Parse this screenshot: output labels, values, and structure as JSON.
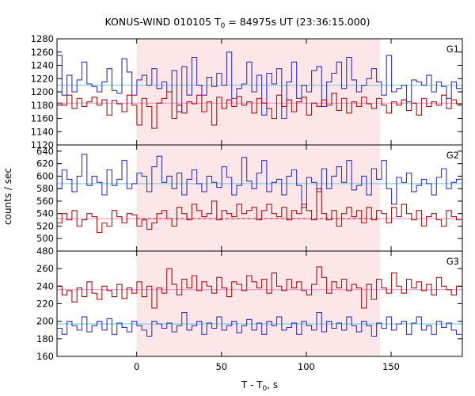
{
  "chart_data": {
    "type": "line",
    "title": "KONUS-WIND 010105 T",
    "title_sub": "0",
    "title_rest": " = 84975s UT (23:36:15.000)",
    "xlabel_main": "T - T",
    "xlabel_sub": "0",
    "xlabel_rest": ", s",
    "ylabel": "counts / sec",
    "xlim": [
      -47,
      192
    ],
    "xticks": [
      0,
      50,
      100,
      150
    ],
    "shaded_interval": [
      0,
      143.5
    ],
    "step": 2.944,
    "colors": {
      "blue": "#3333bb",
      "red": "#aa1111",
      "blue_bg": "#66ccdd",
      "red_bg": "#ee88cc",
      "shade": "#fde6e8"
    },
    "panels": [
      {
        "label": "G1",
        "ylim": [
          1120,
          1280
        ],
        "yticks": [
          1120,
          1140,
          1160,
          1180,
          1200,
          1220,
          1240,
          1260,
          1280
        ],
        "series": [
          {
            "color_key": "blue",
            "background": 1210,
            "values": [
              1255,
              1195,
              1225,
              1200,
              1218,
              1245,
              1212,
              1208,
              1200,
              1215,
              1235,
              1202,
              1198,
              1250,
              1230,
              1195,
              1218,
              1225,
              1210,
              1235,
              1205,
              1215,
              1200,
              1232,
              1170,
              1238,
              1195,
              1252,
              1210,
              1195,
              1222,
              1208,
              1228,
              1210,
              1260,
              1190,
              1205,
              1212,
              1245,
              1200,
              1225,
              1165,
              1228,
              1212,
              1235,
              1160,
              1215,
              1245,
              1190,
              1210,
              1200,
              1232,
              1238,
              1178,
              1215,
              1228,
              1245,
              1205,
              1252,
              1218,
              1200,
              1210,
              1220,
              1235,
              1215,
              1195,
              1255,
              1200,
              1205,
              1210,
              1185,
              1218,
              1215,
              1210,
              1225,
              1200,
              1215,
              1208,
              1190,
              1215,
              1205
            ]
          },
          {
            "color_key": "red",
            "background": 1183,
            "values": [
              1183,
              1180,
              1195,
              1175,
              1190,
              1178,
              1185,
              1192,
              1180,
              1188,
              1165,
              1187,
              1182,
              1170,
              1195,
              1180,
              1150,
              1190,
              1178,
              1145,
              1183,
              1190,
              1200,
              1160,
              1180,
              1168,
              1185,
              1182,
              1195,
              1170,
              1185,
              1150,
              1192,
              1175,
              1188,
              1178,
              1193,
              1180,
              1185,
              1168,
              1190,
              1183,
              1175,
              1160,
              1195,
              1178,
              1188,
              1170,
              1185,
              1192,
              1165,
              1183,
              1178,
              1188,
              1180,
              1198,
              1172,
              1190,
              1168,
              1185,
              1178,
              1192,
              1182,
              1175,
              1190,
              1180,
              1168,
              1185,
              1180,
              1188,
              1172,
              1183,
              1165,
              1190,
              1178,
              1185,
              1180,
              1195,
              1175,
              1188,
              1182
            ]
          }
        ]
      },
      {
        "label": "G2",
        "ylim": [
          480,
          650
        ],
        "yticks": [
          480,
          500,
          520,
          540,
          560,
          580,
          600,
          620,
          640
        ],
        "series": [
          {
            "color_key": "blue",
            "background": 588,
            "values": [
              580,
              610,
              595,
              575,
              600,
              635,
              585,
              600,
              590,
              570,
              610,
              585,
              595,
              625,
              580,
              588,
              605,
              600,
              575,
              615,
              632,
              590,
              600,
              580,
              605,
              570,
              595,
              610,
              588,
              575,
              600,
              590,
              582,
              615,
              598,
              570,
              585,
              630,
              592,
              580,
              605,
              625,
              575,
              590,
              595,
              570,
              600,
              610,
              585,
              550,
              598,
              590,
              575,
              612,
              580,
              600,
              615,
              590,
              625,
              578,
              585,
              600,
              570,
              612,
              595,
              625,
              580,
              555,
              598,
              590,
              605,
              575,
              585,
              595,
              588,
              570,
              598,
              612,
              580,
              590,
              595
            ]
          },
          {
            "color_key": "red",
            "background": 532,
            "values": [
              525,
              540,
              530,
              545,
              520,
              530,
              540,
              535,
              510,
              525,
              520,
              545,
              535,
              525,
              540,
              538,
              520,
              530,
              515,
              525,
              540,
              545,
              532,
              520,
              550,
              540,
              530,
              555,
              545,
              535,
              540,
              560,
              530,
              545,
              540,
              535,
              555,
              540,
              545,
              550,
              530,
              545,
              555,
              540,
              535,
              550,
              530,
              545,
              540,
              555,
              545,
              530,
              580,
              540,
              530,
              545,
              520,
              540,
              550,
              535,
              545,
              525,
              550,
              530,
              545,
              540,
              525,
              550,
              535,
              555,
              540,
              530,
              545,
              520,
              535,
              540,
              530,
              520,
              545,
              535,
              530
            ]
          }
        ]
      },
      {
        "label": "G3",
        "ylim": [
          160,
          280
        ],
        "yticks": [
          160,
          180,
          200,
          220,
          240,
          260
        ],
        "series": [
          {
            "color_key": "red",
            "background": 236,
            "values": [
              240,
              230,
              235,
              222,
              238,
              228,
              245,
              232,
              225,
              240,
              235,
              228,
              242,
              226,
              238,
              232,
              245,
              228,
              240,
              215,
              238,
              232,
              260,
              242,
              230,
              248,
              238,
              252,
              235,
              245,
              240,
              232,
              250,
              238,
              228,
              245,
              242,
              235,
              252,
              245,
              238,
              248,
              232,
              255,
              240,
              235,
              248,
              238,
              245,
              235,
              230,
              242,
              262,
              250,
              232,
              245,
              238,
              248,
              235,
              242,
              238,
              215,
              242,
              225,
              248,
              238,
              232,
              255,
              240,
              232,
              248,
              238,
              245,
              235,
              242,
              230,
              250,
              240,
              236,
              230,
              240
            ]
          },
          {
            "color_key": "blue",
            "background": 197,
            "values": [
              192,
              185,
              200,
              195,
              190,
              205,
              188,
              195,
              200,
              190,
              203,
              185,
              198,
              193,
              188,
              200,
              195,
              190,
              183,
              200,
              197,
              192,
              198,
              188,
              195,
              210,
              190,
              195,
              200,
              185,
              198,
              192,
              205,
              190,
              195,
              200,
              187,
              195,
              202,
              190,
              198,
              185,
              200,
              195,
              205,
              190,
              193,
              198,
              185,
              200,
              195,
              190,
              210,
              188,
              200,
              192,
              198,
              190,
              205,
              195,
              188,
              200,
              195,
              183,
              198,
              192,
              205,
              190,
              197,
              200,
              185,
              198,
              205,
              190,
              195,
              185,
              200,
              193,
              198,
              190,
              185
            ]
          }
        ]
      }
    ]
  }
}
